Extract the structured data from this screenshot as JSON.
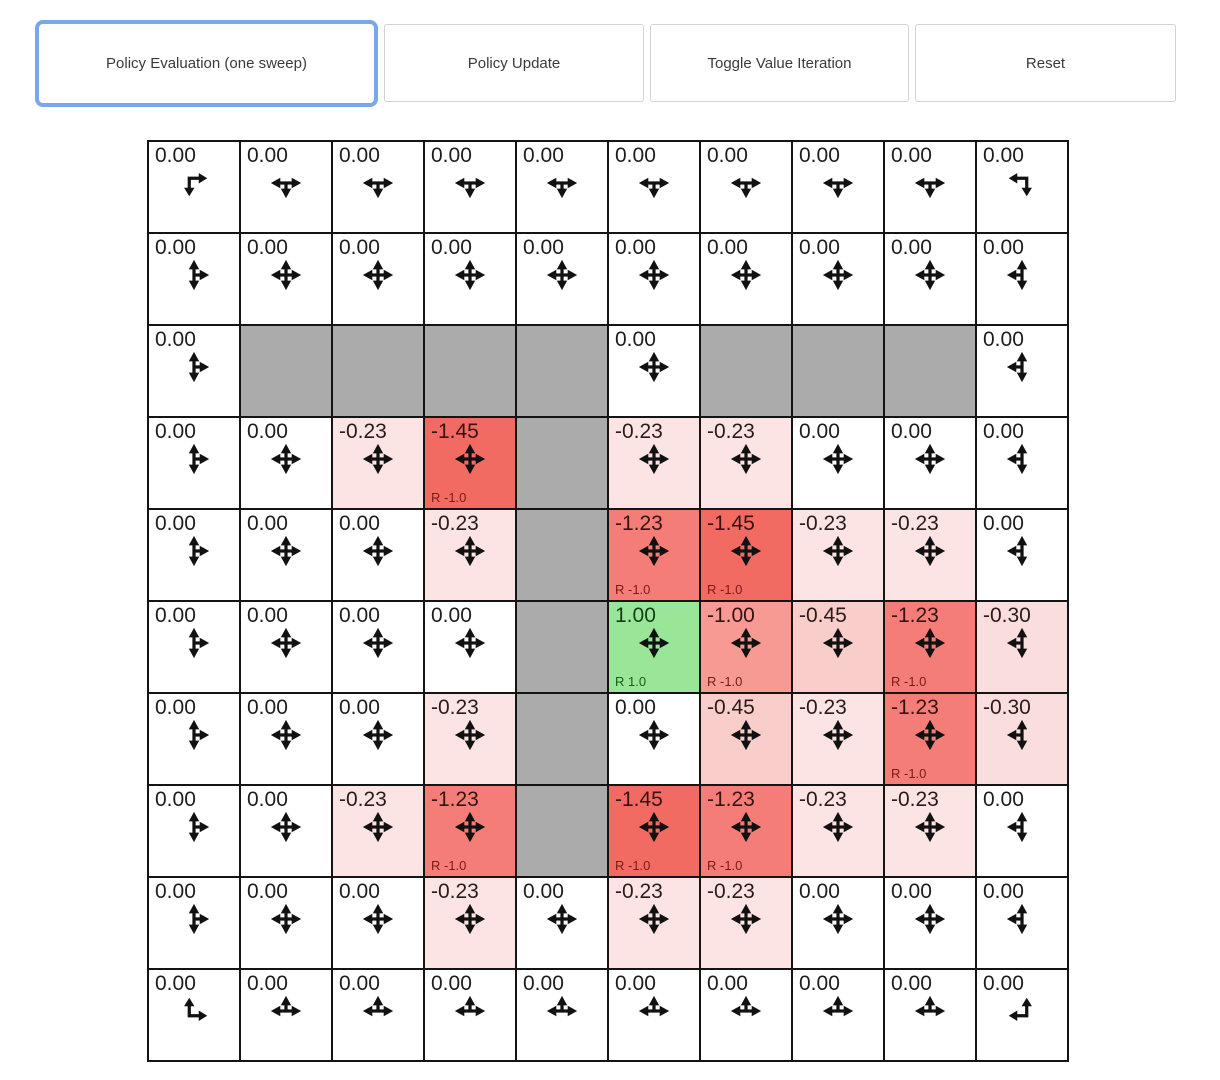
{
  "toolbar": {
    "buttons": [
      {
        "label": "Policy Evaluation (one sweep)",
        "active": true
      },
      {
        "label": "Policy Update",
        "active": false
      },
      {
        "label": "Toggle Value Iteration",
        "active": false
      },
      {
        "label": "Reset",
        "active": false
      }
    ]
  },
  "colors": {
    "accent": "#7aa7e8",
    "wall": "#ababab",
    "grid_line": "#141414",
    "button_border": "#d3d3d3",
    "button_text": "#3a3a3a",
    "arrow": "#111111",
    "reward_negative_text": "#7c1a14",
    "reward_positive_text": "#156015"
  },
  "palette": {
    "bg": {
      "0.00": "#ffffff",
      "-0.23": "#fbe4e3",
      "-0.30": "#fadedd",
      "-0.45": "#f8cdca",
      "-1.00": "#f69a93",
      "-1.23": "#f47e77",
      "-1.45": "#f26b63",
      "1.00": "#99e699"
    },
    "text": {
      "0.00": "#1d1d1d",
      "-0.23": "#2b1b1a",
      "-0.30": "#2b1b1a",
      "-0.45": "#2b1b1a",
      "-1.00": "#371210",
      "-1.23": "#371210",
      "-1.45": "#371210",
      "1.00": "#153e15"
    }
  },
  "grid": {
    "rows_count": 10,
    "cols_count": 10,
    "rows": [
      [
        {
          "v": "0.00",
          "d": "rd"
        },
        {
          "v": "0.00",
          "d": "lrd"
        },
        {
          "v": "0.00",
          "d": "lrd"
        },
        {
          "v": "0.00",
          "d": "lrd"
        },
        {
          "v": "0.00",
          "d": "lrd"
        },
        {
          "v": "0.00",
          "d": "lrd"
        },
        {
          "v": "0.00",
          "d": "lrd"
        },
        {
          "v": "0.00",
          "d": "lrd"
        },
        {
          "v": "0.00",
          "d": "lrd"
        },
        {
          "v": "0.00",
          "d": "ld"
        }
      ],
      [
        {
          "v": "0.00",
          "d": "urd"
        },
        {
          "v": "0.00",
          "d": "ulrd"
        },
        {
          "v": "0.00",
          "d": "ulrd"
        },
        {
          "v": "0.00",
          "d": "ulrd"
        },
        {
          "v": "0.00",
          "d": "ulrd"
        },
        {
          "v": "0.00",
          "d": "ulrd"
        },
        {
          "v": "0.00",
          "d": "ulrd"
        },
        {
          "v": "0.00",
          "d": "ulrd"
        },
        {
          "v": "0.00",
          "d": "ulrd"
        },
        {
          "v": "0.00",
          "d": "uld"
        }
      ],
      [
        {
          "v": "0.00",
          "d": "urd"
        },
        {
          "w": true
        },
        {
          "w": true
        },
        {
          "w": true
        },
        {
          "w": true
        },
        {
          "v": "0.00",
          "d": "ulrd"
        },
        {
          "w": true
        },
        {
          "w": true
        },
        {
          "w": true
        },
        {
          "v": "0.00",
          "d": "uld"
        }
      ],
      [
        {
          "v": "0.00",
          "d": "urd"
        },
        {
          "v": "0.00",
          "d": "ulrd"
        },
        {
          "v": "-0.23",
          "d": "ulrd"
        },
        {
          "v": "-1.45",
          "d": "ulrd",
          "r": "R -1.0"
        },
        {
          "w": true
        },
        {
          "v": "-0.23",
          "d": "ulrd"
        },
        {
          "v": "-0.23",
          "d": "ulrd"
        },
        {
          "v": "0.00",
          "d": "ulrd"
        },
        {
          "v": "0.00",
          "d": "ulrd"
        },
        {
          "v": "0.00",
          "d": "uld"
        }
      ],
      [
        {
          "v": "0.00",
          "d": "urd"
        },
        {
          "v": "0.00",
          "d": "ulrd"
        },
        {
          "v": "0.00",
          "d": "ulrd"
        },
        {
          "v": "-0.23",
          "d": "ulrd"
        },
        {
          "w": true
        },
        {
          "v": "-1.23",
          "d": "ulrd",
          "r": "R -1.0"
        },
        {
          "v": "-1.45",
          "d": "ulrd",
          "r": "R -1.0"
        },
        {
          "v": "-0.23",
          "d": "ulrd"
        },
        {
          "v": "-0.23",
          "d": "ulrd"
        },
        {
          "v": "0.00",
          "d": "uld"
        }
      ],
      [
        {
          "v": "0.00",
          "d": "urd"
        },
        {
          "v": "0.00",
          "d": "ulrd"
        },
        {
          "v": "0.00",
          "d": "ulrd"
        },
        {
          "v": "0.00",
          "d": "ulrd"
        },
        {
          "w": true
        },
        {
          "v": "1.00",
          "d": "ulrd",
          "r": "R 1.0"
        },
        {
          "v": "-1.00",
          "d": "ulrd",
          "r": "R -1.0"
        },
        {
          "v": "-0.45",
          "d": "ulrd"
        },
        {
          "v": "-1.23",
          "d": "ulrd",
          "r": "R -1.0"
        },
        {
          "v": "-0.30",
          "d": "uld"
        }
      ],
      [
        {
          "v": "0.00",
          "d": "urd"
        },
        {
          "v": "0.00",
          "d": "ulrd"
        },
        {
          "v": "0.00",
          "d": "ulrd"
        },
        {
          "v": "-0.23",
          "d": "ulrd"
        },
        {
          "w": true
        },
        {
          "v": "0.00",
          "d": "ulrd"
        },
        {
          "v": "-0.45",
          "d": "ulrd"
        },
        {
          "v": "-0.23",
          "d": "ulrd"
        },
        {
          "v": "-1.23",
          "d": "ulrd",
          "r": "R -1.0"
        },
        {
          "v": "-0.30",
          "d": "uld"
        }
      ],
      [
        {
          "v": "0.00",
          "d": "urd"
        },
        {
          "v": "0.00",
          "d": "ulrd"
        },
        {
          "v": "-0.23",
          "d": "ulrd"
        },
        {
          "v": "-1.23",
          "d": "ulrd",
          "r": "R -1.0"
        },
        {
          "w": true
        },
        {
          "v": "-1.45",
          "d": "ulrd",
          "r": "R -1.0"
        },
        {
          "v": "-1.23",
          "d": "ulrd",
          "r": "R -1.0"
        },
        {
          "v": "-0.23",
          "d": "ulrd"
        },
        {
          "v": "-0.23",
          "d": "ulrd"
        },
        {
          "v": "0.00",
          "d": "uld"
        }
      ],
      [
        {
          "v": "0.00",
          "d": "urd"
        },
        {
          "v": "0.00",
          "d": "ulrd"
        },
        {
          "v": "0.00",
          "d": "ulrd"
        },
        {
          "v": "-0.23",
          "d": "ulrd"
        },
        {
          "v": "0.00",
          "d": "ulrd"
        },
        {
          "v": "-0.23",
          "d": "ulrd"
        },
        {
          "v": "-0.23",
          "d": "ulrd"
        },
        {
          "v": "0.00",
          "d": "ulrd"
        },
        {
          "v": "0.00",
          "d": "ulrd"
        },
        {
          "v": "0.00",
          "d": "uld"
        }
      ],
      [
        {
          "v": "0.00",
          "d": "ur"
        },
        {
          "v": "0.00",
          "d": "lru"
        },
        {
          "v": "0.00",
          "d": "lru"
        },
        {
          "v": "0.00",
          "d": "lru"
        },
        {
          "v": "0.00",
          "d": "lru"
        },
        {
          "v": "0.00",
          "d": "lru"
        },
        {
          "v": "0.00",
          "d": "lru"
        },
        {
          "v": "0.00",
          "d": "lru"
        },
        {
          "v": "0.00",
          "d": "lru"
        },
        {
          "v": "0.00",
          "d": "ul"
        }
      ]
    ]
  }
}
